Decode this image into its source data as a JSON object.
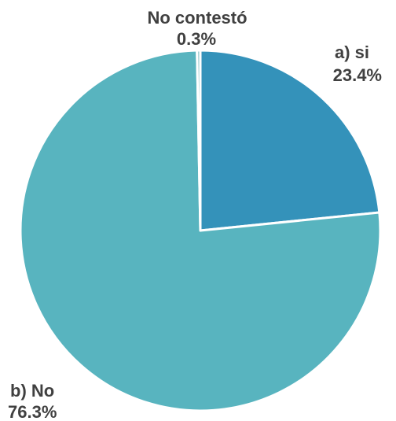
{
  "chart_data": {
    "type": "pie",
    "slices": [
      {
        "label": "a) si",
        "value": 23.4,
        "value_label": "23.4%",
        "color": "#3492BA"
      },
      {
        "label": "b) No",
        "value": 76.3,
        "value_label": "76.3%",
        "color": "#58B4BF"
      },
      {
        "label": "No contestó",
        "value": 0.3,
        "value_label": "0.3%",
        "color": "#8FC4C9"
      }
    ],
    "start_angle_deg": 0,
    "direction": "clockwise",
    "slice_border_color": "#ffffff",
    "label_color": "#404040"
  }
}
